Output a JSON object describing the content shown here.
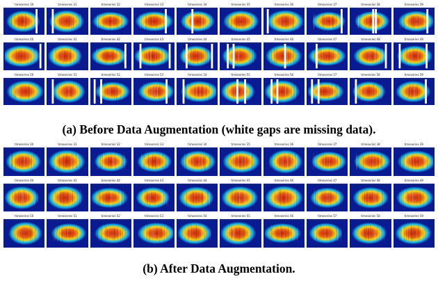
{
  "panel_a": {
    "caption": "(a) Before Data Augmentation (white gaps are missing data).",
    "cells": [
      {
        "title": "timeseries 30",
        "gaps": [
          0.8
        ]
      },
      {
        "title": "timeseries 31",
        "gaps": [
          0.1
        ]
      },
      {
        "title": "timeseries 32",
        "gaps": []
      },
      {
        "title": "timeseries 33",
        "gaps": [
          0.78
        ]
      },
      {
        "title": "timeseries 34",
        "gaps": [
          0.35
        ]
      },
      {
        "title": "timeseries 35",
        "gaps": []
      },
      {
        "title": "timeseries 36",
        "gaps": [
          0.05
        ]
      },
      {
        "title": "timeseries 37",
        "gaps": [
          0.85
        ]
      },
      {
        "title": "timeseries 38",
        "gaps": [
          0.55,
          0.62
        ]
      },
      {
        "title": "timeseries 39",
        "gaps": [
          0.82
        ]
      },
      {
        "title": "timeseries 40",
        "gaps": [
          0.9
        ]
      },
      {
        "title": "timeseries 41",
        "gaps": []
      },
      {
        "title": "timeseries 42",
        "gaps": [
          0.85
        ]
      },
      {
        "title": "timeseries 43",
        "gaps": [
          0.12,
          0.88
        ]
      },
      {
        "title": "timeseries 44",
        "gaps": [
          0.2,
          0.86
        ]
      },
      {
        "title": "timeseries 45",
        "gaps": [
          0.15,
          0.3
        ]
      },
      {
        "title": "timeseries 46",
        "gaps": [
          0.5
        ]
      },
      {
        "title": "timeseries 47",
        "gaps": [
          0.2
        ]
      },
      {
        "title": "timeseries 48",
        "gaps": [
          0.88
        ]
      },
      {
        "title": "timeseries 49",
        "gaps": [
          0.1,
          0.8
        ]
      },
      {
        "title": "timeseries 50",
        "gaps": []
      },
      {
        "title": "timeseries 51",
        "gaps": [
          0.1
        ]
      },
      {
        "title": "timeseries 52",
        "gaps": [
          0.05,
          0.22
        ]
      },
      {
        "title": "timeseries 53",
        "gaps": [
          0.8
        ]
      },
      {
        "title": "timeseries 54",
        "gaps": [
          0.12
        ]
      },
      {
        "title": "timeseries 55",
        "gaps": [
          0.4,
          0.6
        ]
      },
      {
        "title": "timeseries 56",
        "gaps": [
          0.15,
          0.3
        ]
      },
      {
        "title": "timeseries 57",
        "gaps": [
          0.08,
          0.25
        ]
      },
      {
        "title": "timeseries 58",
        "gaps": [
          0.1
        ]
      },
      {
        "title": "timeseries 59",
        "gaps": [
          0.78
        ]
      }
    ]
  },
  "panel_b": {
    "caption": "(b) After Data Augmentation.",
    "cells": [
      {
        "title": "timeseries 30",
        "gaps": []
      },
      {
        "title": "timeseries 31",
        "gaps": []
      },
      {
        "title": "timeseries 32",
        "gaps": []
      },
      {
        "title": "timeseries 33",
        "gaps": []
      },
      {
        "title": "timeseries 34",
        "gaps": []
      },
      {
        "title": "timeseries 35",
        "gaps": []
      },
      {
        "title": "timeseries 36",
        "gaps": []
      },
      {
        "title": "timeseries 37",
        "gaps": []
      },
      {
        "title": "timeseries 38",
        "gaps": []
      },
      {
        "title": "timeseries 39",
        "gaps": []
      },
      {
        "title": "timeseries 40",
        "gaps": []
      },
      {
        "title": "timeseries 41",
        "gaps": []
      },
      {
        "title": "timeseries 42",
        "gaps": []
      },
      {
        "title": "timeseries 43",
        "gaps": []
      },
      {
        "title": "timeseries 44",
        "gaps": []
      },
      {
        "title": "timeseries 45",
        "gaps": []
      },
      {
        "title": "timeseries 46",
        "gaps": []
      },
      {
        "title": "timeseries 47",
        "gaps": []
      },
      {
        "title": "timeseries 48",
        "gaps": []
      },
      {
        "title": "timeseries 49",
        "gaps": []
      },
      {
        "title": "timeseries 50",
        "gaps": []
      },
      {
        "title": "timeseries 51",
        "gaps": []
      },
      {
        "title": "timeseries 52",
        "gaps": []
      },
      {
        "title": "timeseries 53",
        "gaps": []
      },
      {
        "title": "timeseries 54",
        "gaps": []
      },
      {
        "title": "timeseries 55",
        "gaps": []
      },
      {
        "title": "timeseries 56",
        "gaps": []
      },
      {
        "title": "timeseries 57",
        "gaps": []
      },
      {
        "title": "timeseries 58",
        "gaps": []
      },
      {
        "title": "timeseries 59",
        "gaps": []
      }
    ]
  },
  "colors": {
    "low": "#0a1a90",
    "mid": "#18b8e8",
    "warm": "#f2d21a",
    "hot": "#c8240e",
    "gap": "#ffffff"
  }
}
